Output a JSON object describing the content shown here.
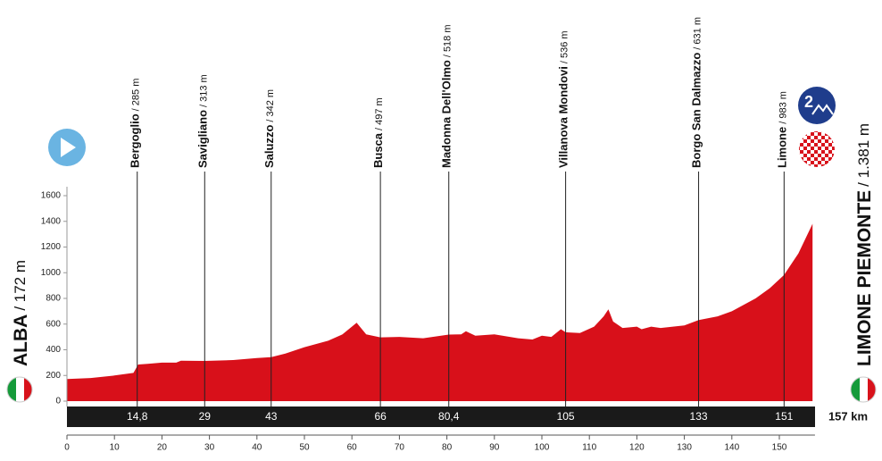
{
  "chart_data": {
    "type": "area",
    "start": {
      "name": "ALBA",
      "altitude": "/ 172 m"
    },
    "finish": {
      "name": "LIMONE PIEMONTE",
      "altitude": "/ 1.381 m"
    },
    "climb_category": "2",
    "total_distance": "157 km",
    "color": "#d8101a",
    "x": [
      0,
      5,
      10,
      14,
      15,
      17,
      20,
      23,
      24,
      29,
      35,
      40,
      43,
      46,
      50,
      55,
      58,
      61,
      63,
      66,
      70,
      75,
      80.4,
      83,
      84,
      86,
      90,
      95,
      98,
      100,
      102,
      104,
      105,
      108,
      111,
      113,
      114,
      115,
      117,
      120,
      121,
      123,
      125,
      130,
      133,
      137,
      140,
      145,
      148,
      151,
      154,
      157
    ],
    "values": [
      172,
      180,
      200,
      220,
      285,
      290,
      300,
      300,
      315,
      313,
      320,
      335,
      342,
      370,
      420,
      470,
      520,
      610,
      520,
      497,
      500,
      490,
      518,
      520,
      545,
      510,
      520,
      490,
      480,
      510,
      500,
      560,
      536,
      530,
      580,
      660,
      715,
      620,
      570,
      580,
      560,
      580,
      570,
      590,
      631,
      660,
      700,
      800,
      880,
      983,
      1150,
      1381
    ],
    "xlim": [
      0,
      157.5
    ],
    "ylim": [
      0,
      1600
    ],
    "xticks": [
      0,
      10,
      20,
      30,
      40,
      50,
      60,
      70,
      80,
      90,
      100,
      110,
      120,
      130,
      140,
      150
    ],
    "yticks": [
      0,
      200,
      400,
      600,
      800,
      1000,
      1200,
      1400,
      1600
    ],
    "waypoints": [
      {
        "name": "Bergoglio",
        "altitude": "/ 285 m",
        "km": {
          "value": 14.8,
          "label": "14,8"
        }
      },
      {
        "name": "Savigliano",
        "altitude": "/ 313 m",
        "km": 29
      },
      {
        "name": "Saluzzo",
        "altitude": "/ 342 m",
        "km": 43
      },
      {
        "name": "Busca",
        "altitude": "/ 497 m",
        "km": 66
      },
      {
        "name": "Madonna Dell'Olmo",
        "altitude": "/ 518 m",
        "km": {
          "value": 80.4,
          "label": "80,4"
        }
      },
      {
        "name": "Villanova Mondovi",
        "altitude": "/ 536 m",
        "km": 105
      },
      {
        "name": "Borgo San Dalmazzo",
        "altitude": "/ 631 m",
        "km": 133
      },
      {
        "name": "Limone",
        "altitude": "/ 983 m",
        "km": 151
      }
    ]
  }
}
